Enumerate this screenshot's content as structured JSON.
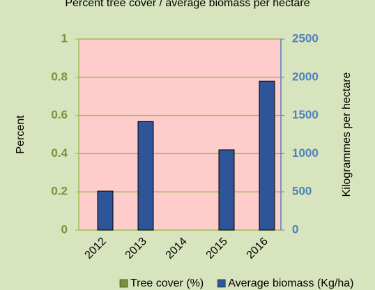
{
  "chart_data": {
    "type": "bar",
    "title": "Percent tree cover / average biomass per hectare",
    "categories": [
      "2012",
      "2013",
      "2014",
      "2015",
      "2016"
    ],
    "series": [
      {
        "name": "Tree cover (%)",
        "color": "#77933c",
        "values": [
          null,
          null,
          null,
          null,
          null
        ]
      },
      {
        "name": "Average biomass (Kg/ha)",
        "color": "#2e5597",
        "axis": "y2",
        "values": [
          510,
          1420,
          null,
          1050,
          1950
        ]
      }
    ],
    "y_label": "Percent",
    "y2_label": "Kilogrammes per hectare",
    "ylim": [
      0,
      1
    ],
    "yticks": [
      0,
      0.2,
      0.4,
      0.6,
      0.8,
      1
    ],
    "y2lim": [
      0,
      2500
    ],
    "y2ticks": [
      0,
      500,
      1000,
      1500,
      2000,
      2500
    ],
    "grid": true,
    "legend": "bottom"
  }
}
